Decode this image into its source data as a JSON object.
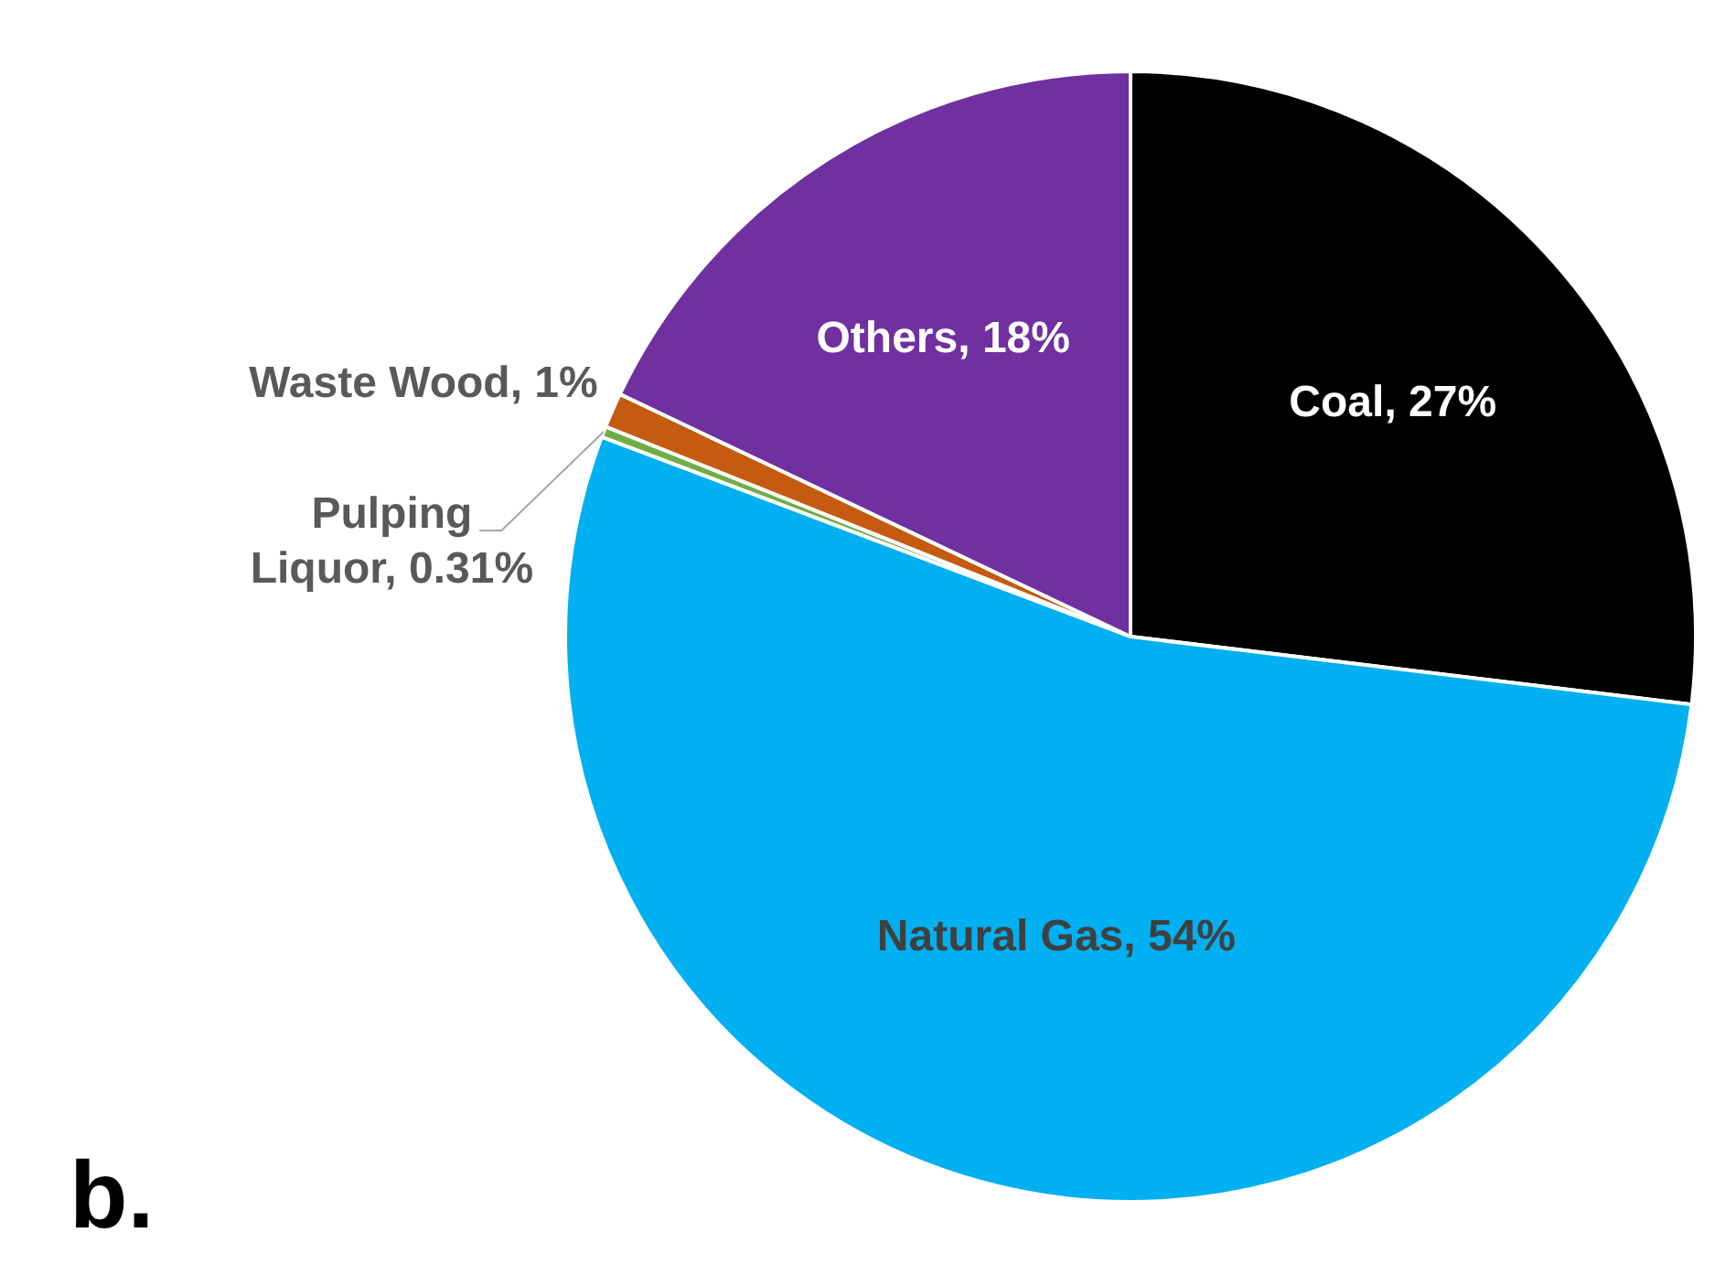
{
  "chart_data": {
    "type": "pie",
    "categories": [
      "Coal",
      "Natural Gas",
      "Pulping Liquor",
      "Waste Wood",
      "Others"
    ],
    "values": [
      27,
      54,
      0.31,
      1,
      18
    ],
    "value_labels": [
      "27%",
      "54%",
      "0.31%",
      "1%",
      "18%"
    ],
    "colors": [
      "#000000",
      "#00b0f0",
      "#70ad47",
      "#c55a11",
      "#7030a0"
    ],
    "legend": false,
    "annotations": [
      "b."
    ]
  }
}
